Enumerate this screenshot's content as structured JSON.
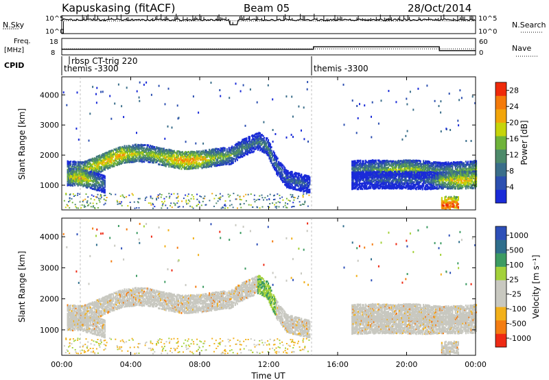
{
  "header": {
    "station": "Kapuskasing (fitACF)",
    "beam": "Beam 05",
    "date": "28/Oct/2014"
  },
  "housekeeping": {
    "nsky_label": "N.Sky",
    "nsky_tick_top": "10^5",
    "nsky_tick_bottom": "10^0",
    "nsearch_label": "N.Search",
    "nsearch_tick_top": "10^5",
    "nsearch_tick_bottom": "10^0",
    "freq_label": "Freq.",
    "freq_unit": "[MHz]",
    "freq_tick_top": "18",
    "freq_tick_bottom": "8",
    "nave_label": "Nave",
    "nave_tick_top": "60",
    "nave_tick_bottom": "0",
    "cpid_label": "CPID",
    "cpid_modes": [
      "rbsp CT-trig 220",
      "themis -3300",
      "themis -3300"
    ]
  },
  "colors": {
    "power_scale": [
      "#1a2bd8",
      "#2c4fb0",
      "#3a6e8a",
      "#4d8a6a",
      "#6fb33a",
      "#c6d40a",
      "#f2a50a",
      "#f47a0a",
      "#ef2a0a"
    ],
    "velocity_scale": [
      "#2d4fb8",
      "#2f6e8c",
      "#3c9b62",
      "#a3d13a",
      "#c8c8c0",
      "#c8c8c0",
      "#f2b01a",
      "#f47d12",
      "#ee2a14"
    ]
  },
  "chart_data": [
    {
      "type": "heatmap",
      "name": "power",
      "xlabel": "Time UT",
      "ylabel": "Slant Range [km]",
      "xlim": [
        0,
        24
      ],
      "ylim": [
        180,
        4600
      ],
      "x_ticks": [
        "00:00",
        "04:00",
        "08:00",
        "12:00",
        "16:00",
        "20:00",
        "00:00"
      ],
      "y_ticks": [
        "1000",
        "2000",
        "3000",
        "4000"
      ],
      "colorbar_label": "Power [dB]",
      "colorbar_range": [
        0,
        30
      ],
      "colorbar_ticks": [
        "4",
        "8",
        "12",
        "16",
        "20",
        "24",
        "28"
      ],
      "x_gap_hours": [
        [
          14.6,
          16.1
        ],
        [
          16.6,
          17.7
        ]
      ]
    },
    {
      "type": "heatmap",
      "name": "velocity",
      "xlabel": "Time UT",
      "ylabel": "Slant Range [km]",
      "xlim": [
        0,
        24
      ],
      "ylim": [
        180,
        4600
      ],
      "x_ticks": [
        "00:00",
        "04:00",
        "08:00",
        "12:00",
        "16:00",
        "20:00",
        "00:00"
      ],
      "y_ticks": [
        "1000",
        "2000",
        "3000",
        "4000"
      ],
      "colorbar_label": "Velocity [m s⁻¹]",
      "colorbar_ticks": [
        "1000",
        "500",
        "100",
        "25",
        "-25",
        "-100",
        "-500",
        "-1000"
      ]
    },
    {
      "type": "line",
      "name": "frequency",
      "ylim": [
        8,
        18
      ],
      "x": [
        0,
        14.6,
        14.6,
        21.9,
        21.9,
        24
      ],
      "y": [
        11.4,
        11.4,
        12.9,
        12.9,
        10.6,
        10.6
      ]
    },
    {
      "type": "line",
      "name": "nave",
      "ylim": [
        0,
        60
      ],
      "x": [
        0,
        24
      ],
      "y": [
        22,
        22
      ]
    }
  ],
  "echo_bands": [
    {
      "x": [
        0.3,
        1.2,
        2.0,
        2.8,
        3.5,
        4.3,
        5.0,
        6.0,
        7.0,
        8.0,
        9.0,
        9.8,
        10.4,
        10.9,
        11.4,
        11.9,
        12.4,
        13.0,
        13.6,
        14.4
      ],
      "y": [
        1550,
        1520,
        1700,
        1900,
        2050,
        2100,
        2080,
        1950,
        1850,
        1880,
        1970,
        2020,
        2250,
        2380,
        2500,
        2300,
        1700,
        1250,
        1150,
        1050
      ],
      "power": [
        12,
        18,
        20,
        22,
        22,
        18,
        16,
        20,
        24,
        22,
        16,
        14,
        12,
        10,
        10,
        12,
        10,
        8,
        8,
        6
      ]
    },
    {
      "x": [
        0.3,
        1.0,
        2.0,
        2.5
      ],
      "y": [
        1300,
        1300,
        1150,
        1050
      ],
      "power": [
        16,
        22,
        14,
        8
      ]
    },
    {
      "x": [
        16.8,
        18.0,
        19.0,
        20.0,
        21.0,
        22.0,
        23.0,
        24.0
      ],
      "y": [
        1560,
        1580,
        1560,
        1580,
        1560,
        1500,
        1520,
        1560
      ],
      "power": [
        10,
        12,
        16,
        18,
        14,
        12,
        14,
        16
      ]
    },
    {
      "x": [
        16.8,
        18.0,
        19.5,
        21.0,
        22.0,
        23.0,
        24.0
      ],
      "y": [
        1180,
        1200,
        1200,
        1180,
        1200,
        1200,
        1220
      ],
      "power": [
        4,
        6,
        8,
        6,
        16,
        22,
        20
      ]
    },
    {
      "x": [
        22.0,
        22.5,
        23.0
      ],
      "y": [
        350,
        380,
        360
      ],
      "power": [
        28,
        28,
        26
      ]
    }
  ]
}
